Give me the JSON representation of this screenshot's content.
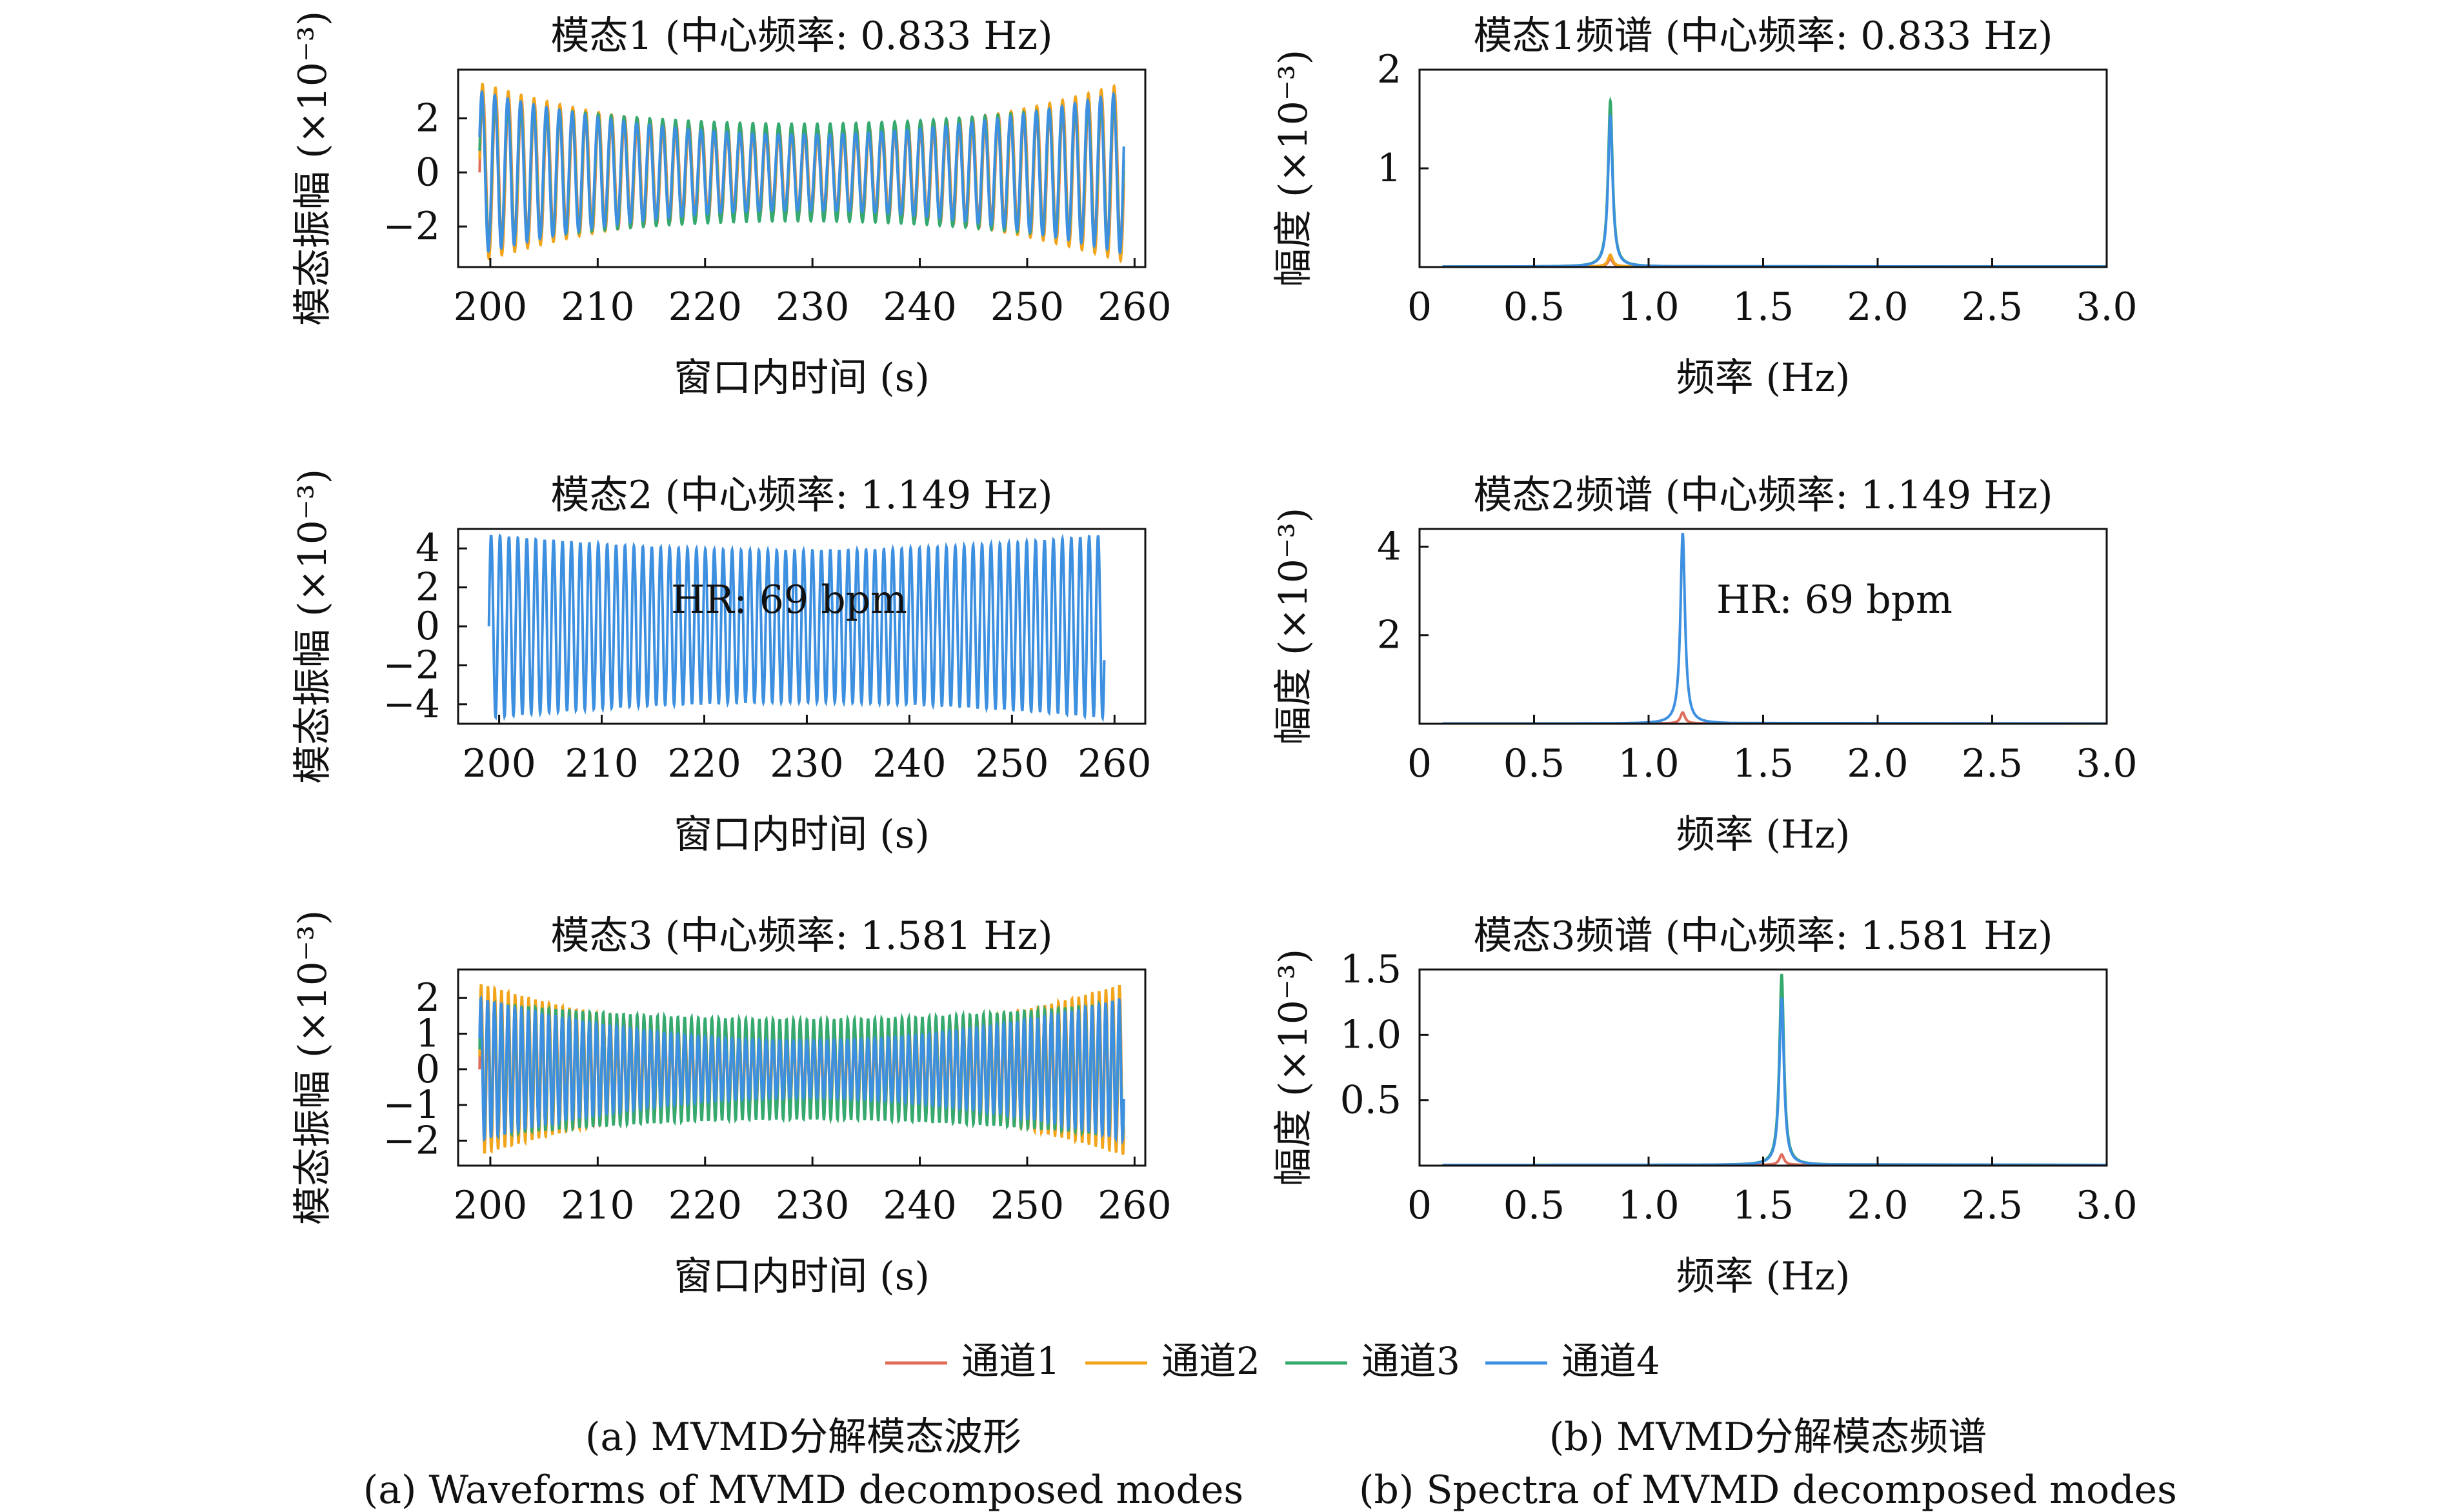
{
  "legend": {
    "placement": "bottom-center",
    "entries": [
      "通道1",
      "通道2",
      "通道3",
      "通道4"
    ],
    "colors": [
      "#e06c5a",
      "#f2a51a",
      "#36a96e",
      "#3d8fe0"
    ]
  },
  "captions": [
    {
      "zh": "(a) MVMD分解模态波形",
      "en": "(a) Waveforms of MVMD decomposed modes"
    },
    {
      "zh": "(b) MVMD分解模态频谱",
      "en": "(b) Spectra of MVMD decomposed modes"
    }
  ],
  "chart_data": [
    {
      "type": "line",
      "title": "模态1 (中心频率: 0.833 Hz)",
      "xlabel": "窗口内时间 (s)",
      "ylabel": "模态振幅 (×10⁻³)",
      "xlim": [
        197,
        261
      ],
      "ylim": [
        -3.5,
        3.8
      ],
      "xticks": [
        200,
        210,
        220,
        230,
        240,
        250,
        260
      ],
      "yticks": [
        -2,
        0,
        2
      ],
      "grid": false,
      "t_range": [
        199,
        259
      ],
      "center_freq_hz": 0.833,
      "series": [
        {
          "name": "通道1",
          "edge_amp": 3.1,
          "mid_amp": 1.6
        },
        {
          "name": "通道2",
          "edge_amp": 3.3,
          "mid_amp": 1.5
        },
        {
          "name": "通道3",
          "edge_amp": 2.7,
          "mid_amp": 1.8
        },
        {
          "name": "通道4",
          "edge_amp": 3.0,
          "mid_amp": 1.4
        }
      ]
    },
    {
      "type": "line",
      "title": "模态1频谱 (中心频率: 0.833 Hz)",
      "xlabel": "频率 (Hz)",
      "ylabel": "幅度 (×10⁻³)",
      "xlim": [
        0,
        3.0
      ],
      "ylim": [
        0,
        2.0
      ],
      "xticks": [
        0,
        0.5,
        1.0,
        1.5,
        2.0,
        2.5,
        3.0
      ],
      "xticklabels": [
        "0",
        "0.5",
        "1.0",
        "1.5",
        "2.0",
        "2.5",
        "3.0"
      ],
      "yticks": [
        1,
        2
      ],
      "grid": false,
      "peak_hz": 0.833,
      "series": [
        {
          "name": "通道1",
          "peak": 0.08
        },
        {
          "name": "通道2",
          "peak": 0.12
        },
        {
          "name": "通道3",
          "peak": 1.68
        },
        {
          "name": "通道4",
          "peak": 1.52
        }
      ]
    },
    {
      "type": "line",
      "title": "模态2 (中心频率: 1.149 Hz)",
      "xlabel": "窗口内时间 (s)",
      "ylabel": "模态振幅 (×10⁻³)",
      "xlim": [
        196,
        263
      ],
      "ylim": [
        -5.0,
        5.0
      ],
      "xticks": [
        200,
        210,
        220,
        230,
        240,
        250,
        260
      ],
      "yticks": [
        -4,
        -2,
        0,
        2,
        4
      ],
      "grid": false,
      "annotation": "HR: 69 bpm",
      "t_range": [
        199,
        259
      ],
      "center_freq_hz": 1.149,
      "series": [
        {
          "name": "通道4",
          "edge_amp": 4.7,
          "mid_amp": 3.9
        }
      ]
    },
    {
      "type": "line",
      "title": "模态2频谱 (中心频率: 1.149 Hz)",
      "xlabel": "频率 (Hz)",
      "ylabel": "幅度 (×10⁻³)",
      "xlim": [
        0,
        3.0
      ],
      "ylim": [
        0,
        4.4
      ],
      "xticks": [
        0,
        0.5,
        1.0,
        1.5,
        2.0,
        2.5,
        3.0
      ],
      "xticklabels": [
        "0",
        "0.5",
        "1.0",
        "1.5",
        "2.0",
        "2.5",
        "3.0"
      ],
      "yticks": [
        2,
        4
      ],
      "grid": false,
      "annotation": "HR: 69 bpm",
      "peak_hz": 1.149,
      "series": [
        {
          "name": "通道1",
          "peak": 0.25
        },
        {
          "name": "通道4",
          "peak": 4.3
        }
      ]
    },
    {
      "type": "line",
      "title": "模态3 (中心频率: 1.581 Hz)",
      "xlabel": "窗口内时间 (s)",
      "ylabel": "模态振幅 (×10⁻³)",
      "xlim": [
        197,
        261
      ],
      "ylim": [
        -2.7,
        2.8
      ],
      "xticks": [
        200,
        210,
        220,
        230,
        240,
        250,
        260
      ],
      "yticks": [
        -2,
        -1,
        0,
        1,
        2
      ],
      "grid": false,
      "t_range": [
        199,
        259
      ],
      "center_freq_hz": 1.581,
      "series": [
        {
          "name": "通道1",
          "edge_amp": 2.2,
          "mid_amp": 1.1
        },
        {
          "name": "通道2",
          "edge_amp": 2.4,
          "mid_amp": 1.0
        },
        {
          "name": "通道3",
          "edge_amp": 1.9,
          "mid_amp": 1.4
        },
        {
          "name": "通道4",
          "edge_amp": 2.0,
          "mid_amp": 0.8
        }
      ]
    },
    {
      "type": "line",
      "title": "模态3频谱 (中心频率: 1.581 Hz)",
      "xlabel": "频率 (Hz)",
      "ylabel": "幅度 (×10⁻³)",
      "xlim": [
        0,
        3.0
      ],
      "ylim": [
        0,
        1.5
      ],
      "xticks": [
        0,
        0.5,
        1.0,
        1.5,
        2.0,
        2.5,
        3.0
      ],
      "xticklabels": [
        "0",
        "0.5",
        "1.0",
        "1.5",
        "2.0",
        "2.5",
        "3.0"
      ],
      "yticks": [
        0.5,
        1.0,
        1.5
      ],
      "yticklabels": [
        "0.5",
        "1.0",
        "1.5"
      ],
      "grid": false,
      "peak_hz": 1.581,
      "series": [
        {
          "name": "通道1",
          "peak": 0.08
        },
        {
          "name": "通道3",
          "peak": 1.46
        },
        {
          "name": "通道4",
          "peak": 1.28
        }
      ]
    }
  ]
}
